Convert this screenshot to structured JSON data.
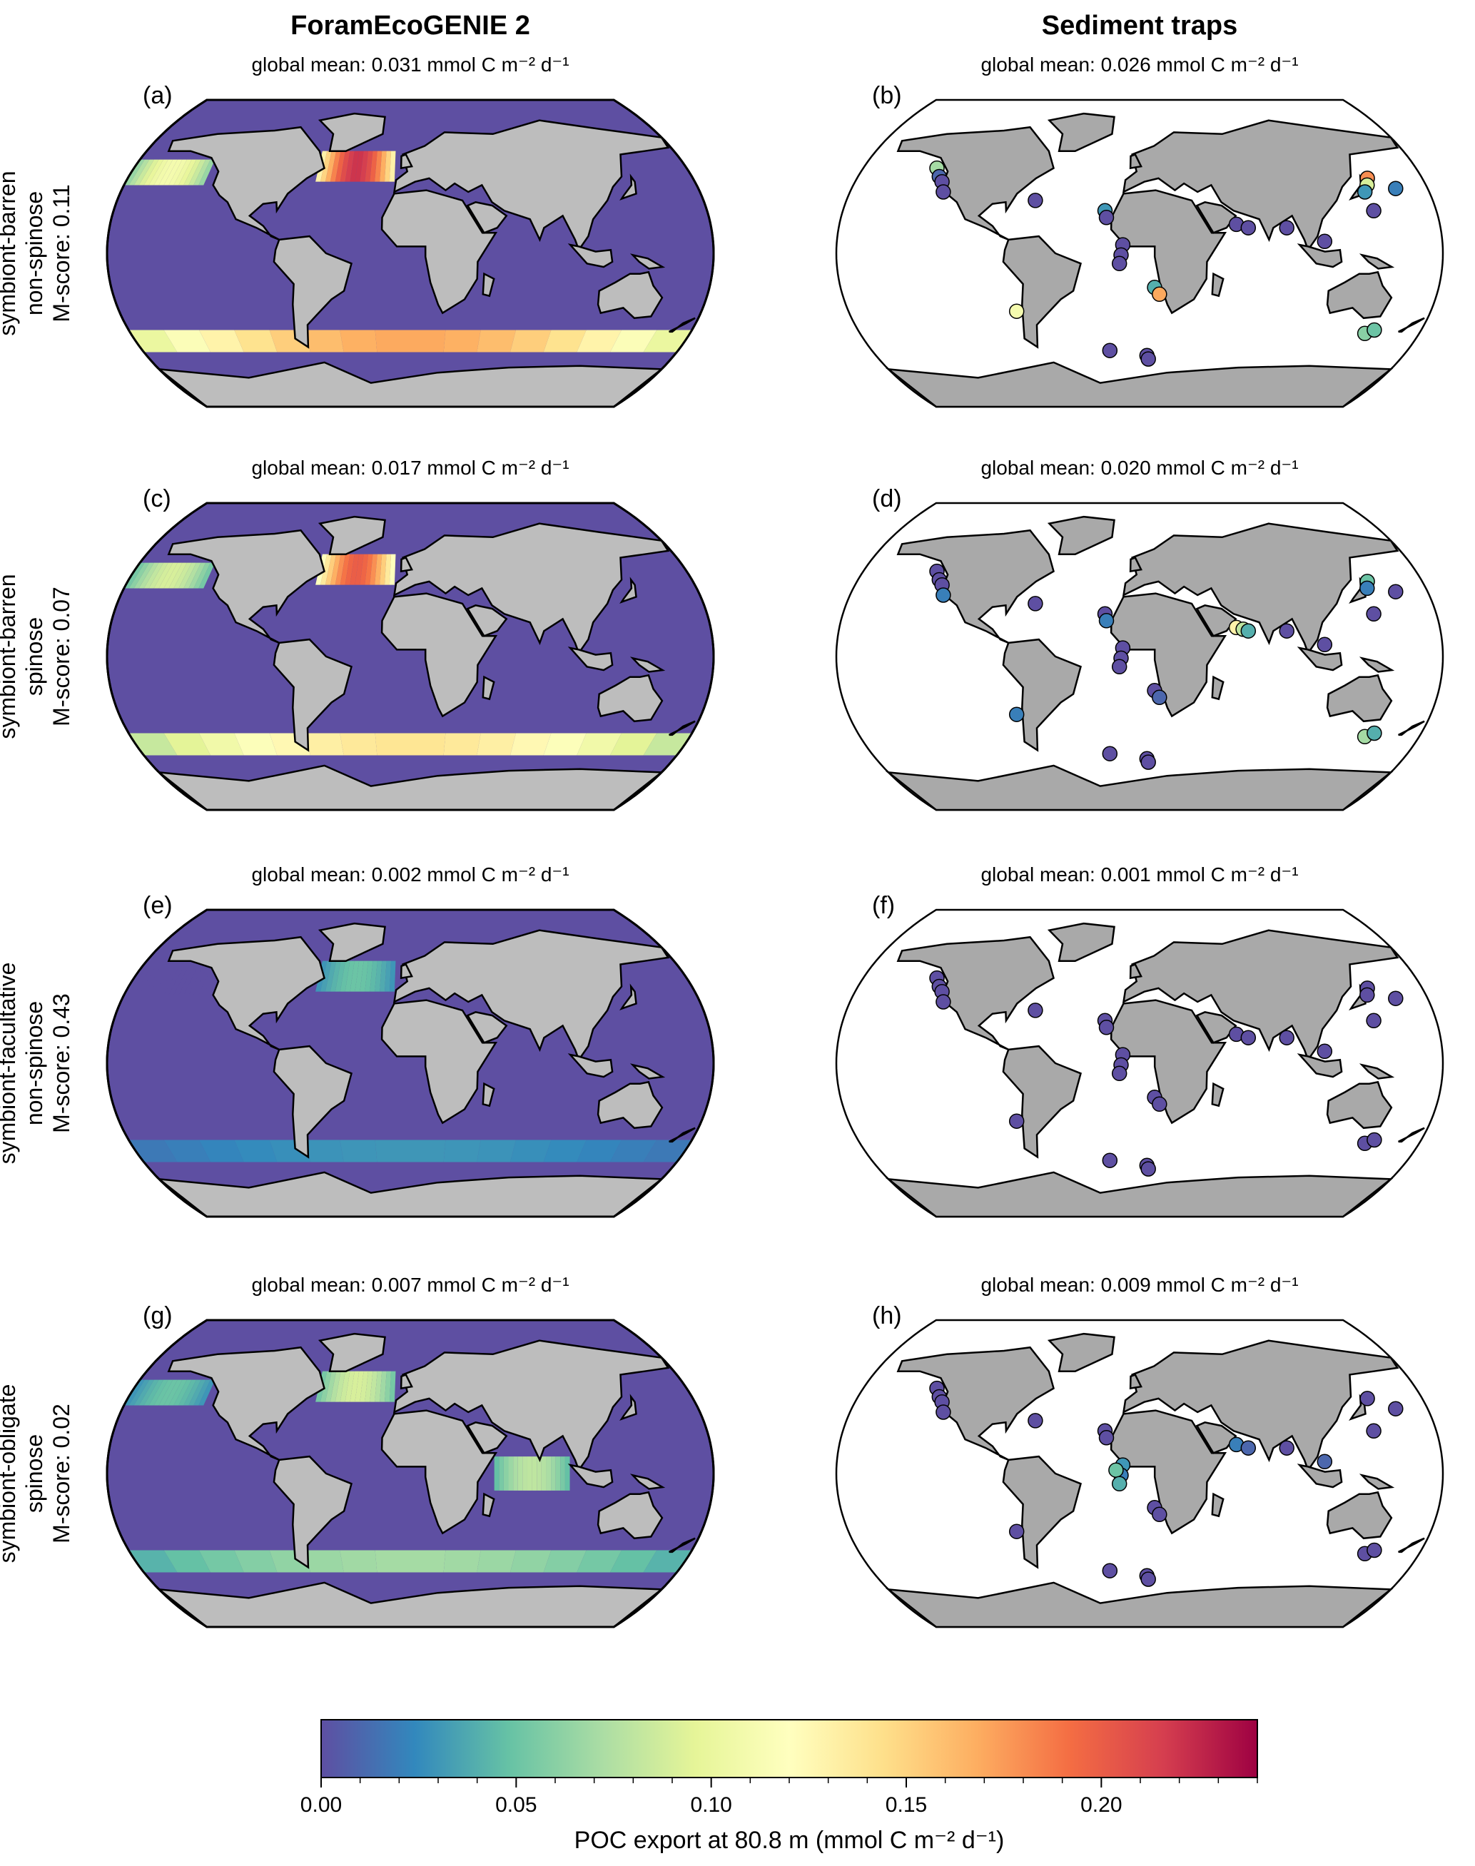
{
  "figure": {
    "column_titles": [
      "ForamEcoGENIE 2",
      "Sediment traps"
    ],
    "colorbar": {
      "colormap": "Spectral_r",
      "range": [
        0.0,
        0.24
      ],
      "ticks": [
        "0.00",
        "0.05",
        "0.10",
        "0.15",
        "0.20"
      ],
      "tick_values": [
        0.0,
        0.05,
        0.1,
        0.15,
        0.2
      ],
      "label": "POC export at 80.8 m (mmol C m⁻² d⁻¹)"
    },
    "rows": [
      {
        "row_label": [
          "symbiont-barren",
          "non-spinose",
          "M-score: 0.11"
        ],
        "model_panel": "(a)",
        "model_mean": "global mean: 0.031  mmol C m⁻² d⁻¹",
        "trap_panel": "(b)",
        "trap_mean": "global mean: 0.026  mmol C m⁻² d⁻¹"
      },
      {
        "row_label": [
          "symbiont-barren",
          "spinose",
          "M-score: 0.07"
        ],
        "model_panel": "(c)",
        "model_mean": "global mean: 0.017  mmol C m⁻² d⁻¹",
        "trap_panel": "(d)",
        "trap_mean": "global mean: 0.020  mmol C m⁻² d⁻¹"
      },
      {
        "row_label": [
          "symbiont-facultative",
          "non-spinose",
          "M-score: 0.43"
        ],
        "model_panel": "(e)",
        "model_mean": "global mean: 0.002  mmol C m⁻² d⁻¹",
        "trap_panel": "(f)",
        "trap_mean": "global mean: 0.001  mmol C m⁻² d⁻¹"
      },
      {
        "row_label": [
          "symbiont-obligate",
          "spinose",
          "M-score: 0.02"
        ],
        "model_panel": "(g)",
        "model_mean": "global mean: 0.007  mmol C m⁻² d⁻¹",
        "trap_panel": "(h)",
        "trap_mean": "global mean: 0.009  mmol C m⁻² d⁻¹"
      }
    ],
    "colors": {
      "ocean_background": "#5e4fa2",
      "land_model": "#bdbdbd",
      "land_traps": "#a9a9a9",
      "trap_ocean": "#ffffff"
    }
  },
  "chart_data": {
    "type": "heatmap",
    "note_free": true,
    "model_bands": [
      {
        "panel": "(a)",
        "bands": [
          {
            "region": "North Atlantic",
            "value": 0.22
          },
          {
            "region": "North Pacific",
            "value": 0.11
          },
          {
            "region": "Southern Ocean",
            "value": 0.17
          }
        ]
      },
      {
        "panel": "(c)",
        "bands": [
          {
            "region": "North Atlantic",
            "value": 0.2
          },
          {
            "region": "North Pacific",
            "value": 0.09
          },
          {
            "region": "Southern Ocean",
            "value": 0.14
          }
        ]
      },
      {
        "panel": "(e)",
        "bands": [
          {
            "region": "North Atlantic",
            "value": 0.05
          },
          {
            "region": "North Pacific",
            "value": 0.0
          },
          {
            "region": "Southern Ocean",
            "value": 0.03
          }
        ]
      },
      {
        "panel": "(g)",
        "bands": [
          {
            "region": "North Atlantic",
            "value": 0.09
          },
          {
            "region": "North Pacific",
            "value": 0.05
          },
          {
            "region": "Southern Ocean",
            "value": 0.07
          },
          {
            "region": "Tropical Indian",
            "value": 0.08
          }
        ]
      }
    ],
    "trap_points": [
      {
        "panel": "(b)",
        "points": [
          {
            "lon": -132,
            "lat": 50,
            "v": 0.07
          },
          {
            "lon": -128,
            "lat": 45,
            "v": 0.01
          },
          {
            "lon": -125,
            "lat": 42,
            "v": 0.0
          },
          {
            "lon": -122,
            "lat": 36,
            "v": 0.0
          },
          {
            "lon": -64,
            "lat": 31,
            "v": 0.0
          },
          {
            "lon": -21,
            "lat": 25,
            "v": 0.03
          },
          {
            "lon": -20,
            "lat": 21,
            "v": 0.0
          },
          {
            "lon": -10,
            "lat": 5,
            "v": 0.0
          },
          {
            "lon": -11,
            "lat": -1,
            "v": 0.0
          },
          {
            "lon": -12,
            "lat": -6,
            "v": 0.0
          },
          {
            "lon": 9,
            "lat": -20,
            "v": 0.04
          },
          {
            "lon": 12,
            "lat": -24,
            "v": 0.17
          },
          {
            "lon": -76,
            "lat": -34,
            "v": 0.11
          },
          {
            "lon": 58,
            "lat": 17,
            "v": 0.0
          },
          {
            "lon": 65,
            "lat": 15,
            "v": 0.0
          },
          {
            "lon": 88,
            "lat": 15,
            "v": 0.0
          },
          {
            "lon": 110,
            "lat": 7,
            "v": 0.0
          },
          {
            "lon": 145,
            "lat": 44,
            "v": 0.18
          },
          {
            "lon": 143,
            "lat": 40,
            "v": 0.09
          },
          {
            "lon": 140,
            "lat": 36,
            "v": 0.03
          },
          {
            "lon": 160,
            "lat": 38,
            "v": 0.02
          },
          {
            "lon": 142,
            "lat": 25,
            "v": 0.0
          },
          {
            "lon": 145,
            "lat": -47,
            "v": 0.06
          },
          {
            "lon": 150,
            "lat": -45,
            "v": 0.05
          },
          {
            "lon": -20,
            "lat": -57,
            "v": 0.0
          },
          {
            "lon": 5,
            "lat": -60,
            "v": 0.0
          },
          {
            "lon": 6,
            "lat": -62,
            "v": 0.0
          }
        ]
      },
      {
        "panel": "(d)",
        "points": [
          {
            "lon": -132,
            "lat": 50,
            "v": 0.0
          },
          {
            "lon": -128,
            "lat": 45,
            "v": 0.0
          },
          {
            "lon": -125,
            "lat": 42,
            "v": 0.0
          },
          {
            "lon": -122,
            "lat": 36,
            "v": 0.02
          },
          {
            "lon": -64,
            "lat": 31,
            "v": 0.0
          },
          {
            "lon": -21,
            "lat": 25,
            "v": 0.0
          },
          {
            "lon": -20,
            "lat": 21,
            "v": 0.02
          },
          {
            "lon": -10,
            "lat": 5,
            "v": 0.0
          },
          {
            "lon": -11,
            "lat": -1,
            "v": 0.0
          },
          {
            "lon": -12,
            "lat": -6,
            "v": 0.0
          },
          {
            "lon": 9,
            "lat": -20,
            "v": 0.0
          },
          {
            "lon": 12,
            "lat": -24,
            "v": 0.01
          },
          {
            "lon": -76,
            "lat": -34,
            "v": 0.02
          },
          {
            "lon": 58,
            "lat": 17,
            "v": 0.13
          },
          {
            "lon": 62,
            "lat": 16,
            "v": 0.08
          },
          {
            "lon": 65,
            "lat": 15,
            "v": 0.04
          },
          {
            "lon": 88,
            "lat": 15,
            "v": 0.0
          },
          {
            "lon": 145,
            "lat": 44,
            "v": 0.05
          },
          {
            "lon": 143,
            "lat": 40,
            "v": 0.02
          },
          {
            "lon": 160,
            "lat": 38,
            "v": 0.0
          },
          {
            "lon": 142,
            "lat": 25,
            "v": 0.0
          },
          {
            "lon": 110,
            "lat": 7,
            "v": 0.0
          },
          {
            "lon": 145,
            "lat": -47,
            "v": 0.07
          },
          {
            "lon": 150,
            "lat": -45,
            "v": 0.04
          },
          {
            "lon": -20,
            "lat": -57,
            "v": 0.0
          },
          {
            "lon": 5,
            "lat": -60,
            "v": 0.0
          },
          {
            "lon": 6,
            "lat": -62,
            "v": 0.0
          }
        ]
      },
      {
        "panel": "(f)",
        "points": [
          {
            "lon": -132,
            "lat": 50,
            "v": 0.0
          },
          {
            "lon": -128,
            "lat": 45,
            "v": 0.0
          },
          {
            "lon": -125,
            "lat": 42,
            "v": 0.0
          },
          {
            "lon": -122,
            "lat": 36,
            "v": 0.0
          },
          {
            "lon": -64,
            "lat": 31,
            "v": 0.0
          },
          {
            "lon": -21,
            "lat": 25,
            "v": 0.0
          },
          {
            "lon": -20,
            "lat": 21,
            "v": 0.0
          },
          {
            "lon": -10,
            "lat": 5,
            "v": 0.0
          },
          {
            "lon": -11,
            "lat": -1,
            "v": 0.0
          },
          {
            "lon": -12,
            "lat": -6,
            "v": 0.0
          },
          {
            "lon": 9,
            "lat": -20,
            "v": 0.0
          },
          {
            "lon": 12,
            "lat": -24,
            "v": 0.0
          },
          {
            "lon": -76,
            "lat": -34,
            "v": 0.0
          },
          {
            "lon": 58,
            "lat": 17,
            "v": 0.0
          },
          {
            "lon": 65,
            "lat": 15,
            "v": 0.0
          },
          {
            "lon": 88,
            "lat": 15,
            "v": 0.0
          },
          {
            "lon": 110,
            "lat": 7,
            "v": 0.0
          },
          {
            "lon": 145,
            "lat": 44,
            "v": 0.0
          },
          {
            "lon": 143,
            "lat": 40,
            "v": 0.0
          },
          {
            "lon": 160,
            "lat": 38,
            "v": 0.0
          },
          {
            "lon": 142,
            "lat": 25,
            "v": 0.0
          },
          {
            "lon": 145,
            "lat": -47,
            "v": 0.0
          },
          {
            "lon": 150,
            "lat": -45,
            "v": 0.0
          },
          {
            "lon": -20,
            "lat": -57,
            "v": 0.0
          },
          {
            "lon": 5,
            "lat": -60,
            "v": 0.0
          },
          {
            "lon": 6,
            "lat": -62,
            "v": 0.0
          }
        ]
      },
      {
        "panel": "(h)",
        "points": [
          {
            "lon": -132,
            "lat": 50,
            "v": 0.0
          },
          {
            "lon": -128,
            "lat": 45,
            "v": 0.0
          },
          {
            "lon": -125,
            "lat": 42,
            "v": 0.0
          },
          {
            "lon": -122,
            "lat": 36,
            "v": 0.0
          },
          {
            "lon": -64,
            "lat": 31,
            "v": 0.0
          },
          {
            "lon": -21,
            "lat": 25,
            "v": 0.0
          },
          {
            "lon": -20,
            "lat": 21,
            "v": 0.0
          },
          {
            "lon": -10,
            "lat": 5,
            "v": 0.03
          },
          {
            "lon": -11,
            "lat": -1,
            "v": 0.02
          },
          {
            "lon": -14,
            "lat": 2,
            "v": 0.05
          },
          {
            "lon": -12,
            "lat": -6,
            "v": 0.04
          },
          {
            "lon": 9,
            "lat": -20,
            "v": 0.0
          },
          {
            "lon": 12,
            "lat": -24,
            "v": 0.0
          },
          {
            "lon": -76,
            "lat": -34,
            "v": 0.0
          },
          {
            "lon": 58,
            "lat": 17,
            "v": 0.02
          },
          {
            "lon": 65,
            "lat": 15,
            "v": 0.01
          },
          {
            "lon": 88,
            "lat": 15,
            "v": 0.0
          },
          {
            "lon": 110,
            "lat": 7,
            "v": 0.01
          },
          {
            "lon": 145,
            "lat": 44,
            "v": 0.0
          },
          {
            "lon": 160,
            "lat": 38,
            "v": 0.0
          },
          {
            "lon": 142,
            "lat": 25,
            "v": 0.0
          },
          {
            "lon": 145,
            "lat": -47,
            "v": 0.0
          },
          {
            "lon": 150,
            "lat": -45,
            "v": 0.0
          },
          {
            "lon": -20,
            "lat": -57,
            "v": 0.0
          },
          {
            "lon": 5,
            "lat": -60,
            "v": 0.0
          },
          {
            "lon": 6,
            "lat": -62,
            "v": 0.0
          }
        ]
      }
    ]
  }
}
